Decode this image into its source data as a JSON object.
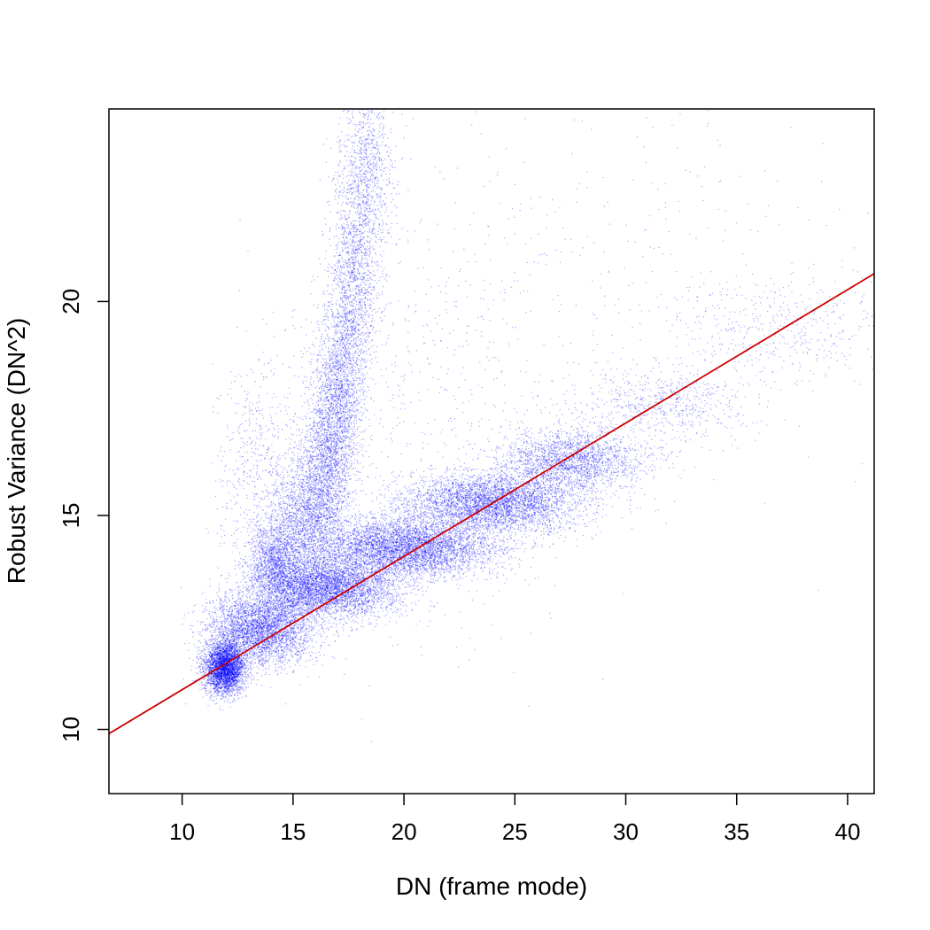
{
  "chart_data": {
    "type": "scatter",
    "title": "",
    "xlabel": "DN (frame mode)",
    "ylabel": "Robust Variance (DN^2)",
    "xlim": [
      6.7,
      41.2
    ],
    "ylim": [
      8.5,
      24.5
    ],
    "x_ticks": [
      10,
      15,
      20,
      25,
      30,
      35,
      40
    ],
    "y_ticks": [
      10,
      15,
      20
    ],
    "grid": false,
    "legend": "none",
    "colors": {
      "points": "#0000ff",
      "fit_line": "#cc0000",
      "axes": "#000000"
    },
    "fit_line": {
      "name": "",
      "x": [
        6.7,
        41.2
      ],
      "y": [
        9.9,
        20.65
      ]
    },
    "series": [
      {
        "name": "",
        "distribution": "density sketch of the point cloud: (x, y, spread_x, spread_y, weight)",
        "clusters": [
          {
            "x": 11.9,
            "y": 11.45,
            "sx": 0.45,
            "sy": 0.3,
            "w": 5
          },
          {
            "x": 13.5,
            "y": 12.35,
            "sx": 1.2,
            "sy": 0.4,
            "w": 5
          },
          {
            "x": 16.5,
            "y": 13.3,
            "sx": 1.6,
            "sy": 0.35,
            "w": 6
          },
          {
            "x": 20.0,
            "y": 14.25,
            "sx": 2.0,
            "sy": 0.35,
            "w": 7
          },
          {
            "x": 24.0,
            "y": 15.3,
            "sx": 2.0,
            "sy": 0.35,
            "w": 6
          },
          {
            "x": 27.5,
            "y": 16.3,
            "sx": 1.6,
            "sy": 0.35,
            "w": 3
          },
          {
            "x": 31.5,
            "y": 17.6,
            "sx": 2.0,
            "sy": 0.45,
            "w": 1
          },
          {
            "x": 37.0,
            "y": 19.4,
            "sx": 2.5,
            "sy": 0.6,
            "w": 0.6
          },
          {
            "x": 14.2,
            "y": 13.9,
            "sx": 0.6,
            "sy": 0.5,
            "w": 2
          },
          {
            "x": 15.4,
            "y": 14.9,
            "sx": 0.7,
            "sy": 0.8,
            "w": 2
          },
          {
            "x": 16.4,
            "y": 15.9,
            "sx": 0.6,
            "sy": 1.0,
            "w": 2.5
          },
          {
            "x": 17.0,
            "y": 17.8,
            "sx": 0.55,
            "sy": 1.1,
            "w": 2.5
          },
          {
            "x": 17.7,
            "y": 20.3,
            "sx": 0.55,
            "sy": 1.3,
            "w": 2
          },
          {
            "x": 18.3,
            "y": 23.0,
            "sx": 0.6,
            "sy": 1.2,
            "w": 1.5
          },
          {
            "x": 13.5,
            "y": 15.5,
            "sx": 1.0,
            "sy": 1.5,
            "w": 1
          },
          {
            "x": 22.0,
            "y": 17.5,
            "sx": 3.5,
            "sy": 2.5,
            "w": 0.8
          },
          {
            "x": 30.0,
            "y": 21.0,
            "sx": 6.0,
            "sy": 2.5,
            "w": 0.5
          }
        ]
      }
    ]
  }
}
